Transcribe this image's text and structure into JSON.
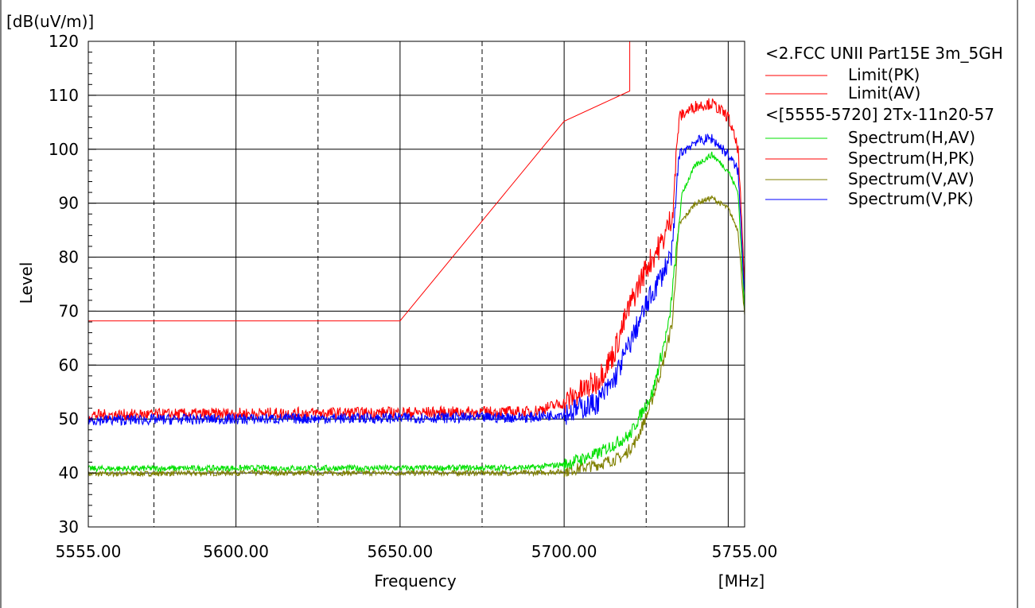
{
  "chart_data": {
    "type": "line",
    "title": "",
    "ylabel": "Level",
    "xlabel": "Frequency",
    "yunit": "[dB(uV/m)]",
    "xunit": "[MHz]",
    "xlim": [
      5555,
      5755
    ],
    "ylim": [
      30,
      120
    ],
    "x_ticks": [
      5555,
      5600,
      5650,
      5700,
      5755
    ],
    "x_tick_labels": [
      "5555.00",
      "5600.00",
      "5650.00",
      "5700.00",
      "5755.00"
    ],
    "y_ticks": [
      30,
      40,
      50,
      60,
      70,
      80,
      90,
      100,
      110,
      120
    ],
    "x_dashed_gridlines": [
      5575,
      5625,
      5675,
      5725
    ],
    "x_solid_gridlines": [
      5600,
      5650,
      5700,
      5750
    ],
    "grid": true,
    "legend_position": "right",
    "legend": {
      "group1_title": "<2.FCC UNII Part15E 3m_5GH",
      "group2_title": "<[5555-5720] 2Tx-11n20-57"
    },
    "series": [
      {
        "name": "Limit(PK)",
        "color": "#ff0000",
        "noise": 0,
        "x": [
          5555,
          5650,
          5700,
          5720,
          5720
        ],
        "y": [
          68.2,
          68.2,
          105.2,
          110.8,
          122
        ]
      },
      {
        "name": "Limit(AV)",
        "color": "#ff0000",
        "noise": 0,
        "x": [],
        "y": []
      },
      {
        "name": "Spectrum(H,AV)",
        "color": "#00e000",
        "noise": 0.55,
        "x": [
          5555,
          5600,
          5650,
          5690,
          5700,
          5710,
          5720,
          5727,
          5732,
          5734,
          5736,
          5740,
          5745,
          5750,
          5753,
          5755
        ],
        "y": [
          40.8,
          40.9,
          40.9,
          41,
          41.6,
          43.5,
          47,
          55,
          68,
          80,
          92,
          97,
          99,
          96,
          92,
          70
        ]
      },
      {
        "name": "Spectrum(H,PK)",
        "color": "#ff0000",
        "noise": 1.1,
        "x": [
          5555,
          5600,
          5650,
          5690,
          5700,
          5710,
          5715,
          5720,
          5725,
          5730,
          5733,
          5735,
          5740,
          5745,
          5750,
          5753,
          5755
        ],
        "y": [
          50.7,
          51,
          51.2,
          51.3,
          53,
          57,
          62,
          71,
          78,
          83,
          88,
          106,
          108,
          108.5,
          106,
          100,
          75
        ]
      },
      {
        "name": "Spectrum(V,AV)",
        "color": "#808000",
        "noise": 0.5,
        "x": [
          5555,
          5600,
          5650,
          5690,
          5700,
          5710,
          5718,
          5722,
          5726,
          5730,
          5733,
          5735,
          5740,
          5745,
          5750,
          5753,
          5755
        ],
        "y": [
          39.8,
          40,
          40,
          40,
          40.3,
          41.5,
          43,
          46,
          52,
          60,
          68,
          86,
          90,
          91,
          89,
          85,
          69
        ]
      },
      {
        "name": "Spectrum(V,PK)",
        "color": "#0000ff",
        "noise": 1.0,
        "x": [
          5555,
          5600,
          5650,
          5690,
          5700,
          5710,
          5715,
          5720,
          5725,
          5730,
          5733,
          5735,
          5740,
          5745,
          5750,
          5753,
          5755
        ],
        "y": [
          49.8,
          50,
          50.2,
          50.3,
          51,
          53,
          57,
          64,
          71,
          77,
          81,
          99,
          101.5,
          102,
          99,
          96,
          73
        ]
      }
    ]
  }
}
